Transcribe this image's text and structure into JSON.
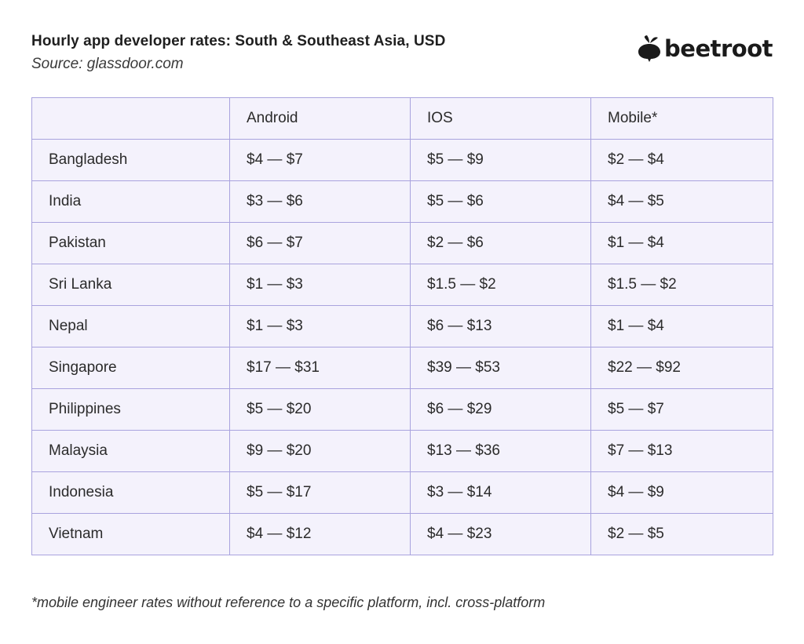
{
  "header": {
    "title": "Hourly app developer rates: South & Southeast Asia, USD",
    "source": "Source: glassdoor.com"
  },
  "logo": {
    "text": "beetroot",
    "icon": "beetroot-icon"
  },
  "footnote": "*mobile engineer rates without reference to a specific platform, incl. cross-platform",
  "chart_data": {
    "type": "table",
    "title": "Hourly app developer rates: South & Southeast Asia, USD",
    "columns": [
      "",
      "Android",
      "IOS",
      "Mobile*"
    ],
    "rows": [
      {
        "country": "Bangladesh",
        "android": "$4 — $7",
        "ios": "$5 — $9",
        "mobile": "$2 — $4"
      },
      {
        "country": "India",
        "android": "$3 — $6",
        "ios": "$5 — $6",
        "mobile": "$4 — $5"
      },
      {
        "country": "Pakistan",
        "android": "$6 — $7",
        "ios": "$2 — $6",
        "mobile": "$1 — $4"
      },
      {
        "country": "Sri Lanka",
        "android": "$1 — $3",
        "ios": "$1.5 — $2",
        "mobile": "$1.5 — $2"
      },
      {
        "country": "Nepal",
        "android": "$1 — $3",
        "ios": "$6 — $13",
        "mobile": "$1 — $4"
      },
      {
        "country": "Singapore",
        "android": "$17 — $31",
        "ios": "$39 — $53",
        "mobile": "$22 — $92"
      },
      {
        "country": "Philippines",
        "android": "$5 — $20",
        "ios": "$6 — $29",
        "mobile": "$5 — $7"
      },
      {
        "country": "Malaysia",
        "android": "$9 — $20",
        "ios": "$13 — $36",
        "mobile": "$7 — $13"
      },
      {
        "country": "Indonesia",
        "android": "$5 — $17",
        "ios": "$3 — $14",
        "mobile": "$4 — $9"
      },
      {
        "country": "Vietnam",
        "android": "$4 — $12",
        "ios": "$4 — $23",
        "mobile": "$2 — $5"
      }
    ]
  },
  "colors": {
    "cell_background": "#f4f2fc",
    "border": "#a9a3de",
    "text": "#2b2b2b"
  }
}
